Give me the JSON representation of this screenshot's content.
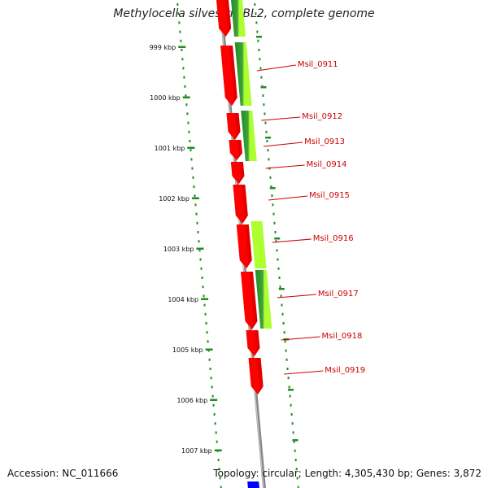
{
  "title": "Methylocella silvestris BL2, complete genome",
  "footer": {
    "accession": "Accession: NC_011666",
    "summary": "Topology: circular; Length: 4,305,430 bp; Genes: 3,872"
  },
  "colors": {
    "cds": "#ff0000",
    "annotation_dark": "#228b22",
    "annotation_light": "#adff2f",
    "backbone": "#888888",
    "ticks": "#228b22",
    "label": "#cc0000",
    "other_feature": "#0000ff"
  },
  "position_ticks": [
    "999 kbp",
    "1000 kbp",
    "1001 kbp",
    "1002 kbp",
    "1003 kbp",
    "1004 kbp",
    "1005 kbp",
    "1006 kbp",
    "1007 kbp"
  ],
  "genes": [
    {
      "label": "Msil_0911"
    },
    {
      "label": "Msil_0912"
    },
    {
      "label": "Msil_0913"
    },
    {
      "label": "Msil_0914"
    },
    {
      "label": "Msil_0915"
    },
    {
      "label": "Msil_0916"
    },
    {
      "label": "Msil_0917"
    },
    {
      "label": "Msil_0918"
    },
    {
      "label": "Msil_0919"
    }
  ]
}
